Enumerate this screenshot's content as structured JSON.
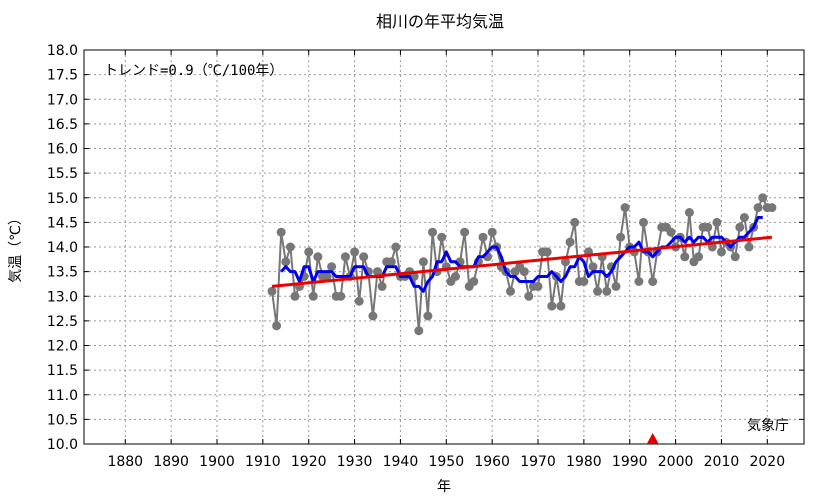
{
  "chart_data": {
    "type": "line",
    "title": "相川の年平均気温",
    "xlabel": "年",
    "ylabel": "気温（℃）",
    "xlim": [
      1871,
      2028
    ],
    "ylim": [
      10.0,
      18.0
    ],
    "xticks": [
      "1880",
      "1890",
      "1900",
      "1910",
      "1920",
      "1930",
      "1940",
      "1950",
      "1960",
      "1970",
      "1980",
      "1990",
      "2000",
      "2010",
      "2020"
    ],
    "yticks": [
      "10.0",
      "10.5",
      "11.0",
      "11.5",
      "12.0",
      "12.5",
      "13.0",
      "13.5",
      "14.0",
      "14.5",
      "15.0",
      "15.5",
      "16.0",
      "16.5",
      "17.0",
      "17.5",
      "18.0"
    ],
    "grid": true,
    "annotation": "トレンド=0.9（℃/100年）",
    "credit": "気象庁",
    "marker_year": 1995,
    "colors": {
      "annual": "#777777",
      "moving_avg": "#0000ee",
      "trend": "#ee0000",
      "marker": "#dd0000"
    },
    "series": [
      {
        "style": "annual",
        "x": [
          1912,
          1913,
          1914,
          1915,
          1916,
          1917,
          1918,
          1919,
          1920,
          1921,
          1922,
          1923,
          1924,
          1925,
          1926,
          1927,
          1928,
          1929,
          1930,
          1931,
          1932,
          1933,
          1934,
          1935,
          1936,
          1937,
          1938,
          1939,
          1940,
          1941,
          1942,
          1943,
          1944,
          1945,
          1946,
          1947,
          1948,
          1949,
          1950,
          1951,
          1952,
          1953,
          1954,
          1955,
          1956,
          1957,
          1958,
          1959,
          1960,
          1961,
          1962,
          1963,
          1964,
          1965,
          1966,
          1967,
          1968,
          1969,
          1970,
          1971,
          1972,
          1973,
          1974,
          1975,
          1976,
          1977,
          1978,
          1979,
          1980,
          1981,
          1982,
          1983,
          1984,
          1985,
          1986,
          1987,
          1988,
          1989,
          1990,
          1991,
          1992,
          1993,
          1994,
          1995,
          1996,
          1997,
          1998,
          1999,
          2000,
          2001,
          2002,
          2003,
          2004,
          2005,
          2006,
          2007,
          2008,
          2009,
          2010,
          2011,
          2012,
          2013,
          2014,
          2015,
          2016,
          2017,
          2018,
          2019,
          2020,
          2021
        ],
        "values": [
          13.1,
          12.4,
          14.3,
          13.7,
          14.0,
          13.0,
          13.2,
          13.4,
          13.9,
          13.0,
          13.8,
          13.4,
          13.4,
          13.6,
          13.0,
          13.0,
          13.8,
          13.4,
          13.9,
          12.9,
          13.8,
          13.5,
          12.6,
          13.5,
          13.2,
          13.7,
          13.7,
          14.0,
          13.4,
          13.4,
          13.5,
          13.4,
          12.3,
          13.7,
          12.6,
          14.3,
          13.5,
          14.2,
          13.6,
          13.3,
          13.4,
          13.7,
          14.3,
          13.2,
          13.3,
          13.7,
          14.2,
          13.8,
          14.3,
          14.0,
          13.6,
          13.5,
          13.1,
          13.5,
          13.6,
          13.5,
          13.0,
          13.2,
          13.2,
          13.9,
          13.9,
          12.8,
          13.4,
          12.8,
          13.7,
          14.1,
          14.5,
          13.3,
          13.3,
          13.9,
          13.6,
          13.1,
          13.8,
          13.1,
          13.6,
          13.2,
          14.2,
          14.8,
          14.0,
          13.9,
          13.3,
          14.5,
          13.9,
          13.3,
          13.9,
          14.4,
          14.4,
          14.3,
          14.0,
          14.2,
          13.8,
          14.7,
          13.7,
          13.8,
          14.4,
          14.4,
          14.0,
          14.5,
          13.9,
          14.1,
          14.0,
          13.8,
          14.4,
          14.6,
          14.0,
          14.4,
          14.8,
          15.0,
          14.8,
          14.8
        ]
      },
      {
        "style": "moving_avg",
        "x": [
          1914,
          1915,
          1916,
          1917,
          1918,
          1919,
          1920,
          1921,
          1922,
          1923,
          1924,
          1925,
          1926,
          1927,
          1928,
          1929,
          1930,
          1931,
          1932,
          1933,
          1934,
          1935,
          1936,
          1937,
          1938,
          1939,
          1940,
          1941,
          1942,
          1943,
          1944,
          1945,
          1946,
          1947,
          1948,
          1949,
          1950,
          1951,
          1952,
          1953,
          1954,
          1955,
          1956,
          1957,
          1958,
          1959,
          1960,
          1961,
          1962,
          1963,
          1964,
          1965,
          1966,
          1967,
          1968,
          1969,
          1970,
          1971,
          1972,
          1973,
          1974,
          1975,
          1976,
          1977,
          1978,
          1979,
          1980,
          1981,
          1982,
          1983,
          1984,
          1985,
          1986,
          1987,
          1988,
          1989,
          1990,
          1991,
          1992,
          1993,
          1994,
          1995,
          1996,
          1997,
          1998,
          1999,
          2000,
          2001,
          2002,
          2003,
          2004,
          2005,
          2006,
          2007,
          2008,
          2009,
          2010,
          2011,
          2012,
          2013,
          2014,
          2015,
          2016,
          2017,
          2018,
          2019
        ],
        "values": [
          13.5,
          13.6,
          13.5,
          13.5,
          13.3,
          13.6,
          13.6,
          13.3,
          13.5,
          13.5,
          13.5,
          13.5,
          13.4,
          13.4,
          13.4,
          13.4,
          13.6,
          13.6,
          13.6,
          13.4,
          13.4,
          13.4,
          13.4,
          13.6,
          13.6,
          13.6,
          13.4,
          13.4,
          13.4,
          13.2,
          13.2,
          13.1,
          13.3,
          13.4,
          13.7,
          13.7,
          13.9,
          13.7,
          13.7,
          13.6,
          13.6,
          13.6,
          13.6,
          13.8,
          13.8,
          13.9,
          14.0,
          14.0,
          13.8,
          13.5,
          13.4,
          13.4,
          13.3,
          13.3,
          13.3,
          13.3,
          13.4,
          13.4,
          13.4,
          13.5,
          13.4,
          13.3,
          13.4,
          13.6,
          13.6,
          13.8,
          13.7,
          13.4,
          13.5,
          13.5,
          13.5,
          13.4,
          13.5,
          13.7,
          13.8,
          13.9,
          14.0,
          14.0,
          14.1,
          13.9,
          13.9,
          13.8,
          13.9,
          14.0,
          14.0,
          14.1,
          14.2,
          14.2,
          14.1,
          14.2,
          14.1,
          14.2,
          14.2,
          14.1,
          14.2,
          14.2,
          14.2,
          14.1,
          14.0,
          14.1,
          14.2,
          14.2,
          14.3,
          14.4,
          14.6,
          14.6
        ]
      },
      {
        "style": "trend",
        "x": [
          1912,
          2021
        ],
        "values": [
          13.2,
          14.2
        ]
      }
    ]
  }
}
